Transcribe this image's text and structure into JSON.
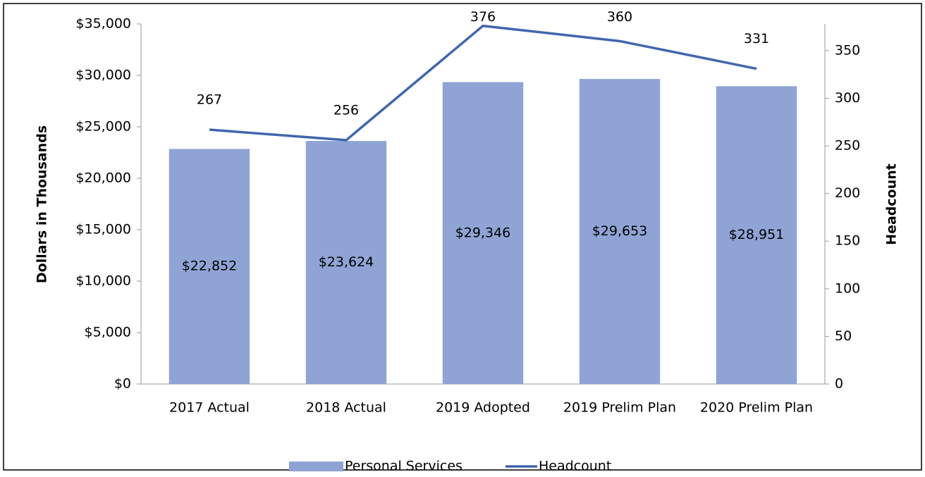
{
  "chart_data": {
    "type": "bar_line",
    "y_label": "Dollars in Thousands",
    "y2_label": "Headcount",
    "categories": [
      "2017 Actual",
      "2018 Actual",
      "2019 Adopted",
      "2019 Prelim Plan",
      "2020 Prelim Plan"
    ],
    "series": [
      {
        "name": "Personal Services",
        "type": "bar",
        "color": "#8fa4d5",
        "values": [
          22852,
          23624,
          29346,
          29653,
          28951
        ],
        "value_labels": [
          "$22,852",
          "$23,624",
          "$29,346",
          "$29,653",
          "$28,951"
        ]
      },
      {
        "name": "Headcount",
        "type": "line",
        "axis": "y2",
        "color": "#4166ad",
        "values": [
          267,
          256,
          376,
          360,
          331
        ]
      }
    ],
    "ylim": [
      0,
      35000
    ],
    "yticks": [
      {
        "value": 0,
        "label": "$0"
      },
      {
        "value": 5000,
        "label": "$5,000"
      },
      {
        "value": 10000,
        "label": "$10,000"
      },
      {
        "value": 15000,
        "label": "$15,000"
      },
      {
        "value": 20000,
        "label": "$20,000"
      },
      {
        "value": 25000,
        "label": "$25,000"
      },
      {
        "value": 30000,
        "label": "$30,000"
      },
      {
        "value": 35000,
        "label": "$35,000"
      }
    ],
    "y2lim": [
      0,
      378
    ],
    "y2ticks": [
      0,
      50,
      100,
      150,
      200,
      250,
      300,
      350
    ],
    "legend": "bottom"
  }
}
